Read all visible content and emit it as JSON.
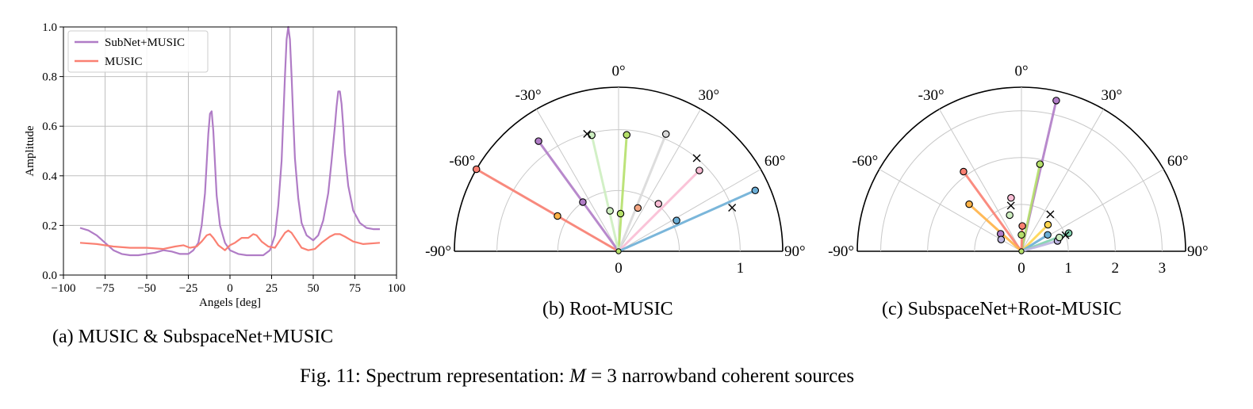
{
  "figure_caption": {
    "prefix": "Fig. 11: Spectrum representation: ",
    "var": "M",
    "suffix": " = 3 narrowband coherent sources"
  },
  "captions": {
    "a": "(a) MUSIC & SubspaceNet+MUSIC",
    "b": "(b) Root-MUSIC",
    "c": "(c) SubspaceNet+Root-MUSIC"
  },
  "chart_data": [
    {
      "type": "line",
      "xlabel": "Angels [deg]",
      "ylabel": "Amplitude",
      "xlim": [
        -100,
        100
      ],
      "ylim": [
        0.0,
        1.0
      ],
      "xticks": [
        -100,
        -75,
        -50,
        -25,
        0,
        25,
        50,
        75,
        100
      ],
      "yticks": [
        0.0,
        0.2,
        0.4,
        0.6,
        0.8,
        1.0
      ],
      "xtick_labels": [
        "−100",
        "−75",
        "−50",
        "−25",
        "0",
        "25",
        "50",
        "75",
        "100"
      ],
      "ytick_labels": [
        "0.0",
        "0.2",
        "0.4",
        "0.6",
        "0.8",
        "1.0"
      ],
      "grid": true,
      "legend_position": "top-left",
      "series": [
        {
          "name": "SubNet+MUSIC",
          "color": "#b07cc6",
          "x": [
            -90,
            -85,
            -80,
            -75,
            -70,
            -65,
            -60,
            -55,
            -50,
            -45,
            -40,
            -35,
            -30,
            -25,
            -22,
            -19,
            -17,
            -15,
            -14,
            -13,
            -12,
            -11,
            -10,
            -9,
            -8,
            -6,
            -3,
            0,
            5,
            10,
            15,
            20,
            24,
            27,
            29,
            31,
            32,
            33,
            34,
            35,
            36,
            37,
            38,
            39,
            41,
            43,
            46,
            50,
            53,
            56,
            59,
            61,
            63,
            64,
            65,
            66,
            67,
            68,
            69,
            71,
            74,
            78,
            82,
            86,
            90
          ],
          "y": [
            0.19,
            0.18,
            0.16,
            0.13,
            0.1,
            0.085,
            0.08,
            0.08,
            0.085,
            0.09,
            0.1,
            0.095,
            0.085,
            0.085,
            0.1,
            0.13,
            0.2,
            0.33,
            0.45,
            0.57,
            0.65,
            0.66,
            0.58,
            0.45,
            0.32,
            0.2,
            0.13,
            0.1,
            0.085,
            0.08,
            0.08,
            0.08,
            0.1,
            0.16,
            0.28,
            0.46,
            0.63,
            0.8,
            0.95,
            1.0,
            0.95,
            0.8,
            0.63,
            0.47,
            0.31,
            0.21,
            0.16,
            0.14,
            0.16,
            0.22,
            0.33,
            0.46,
            0.6,
            0.68,
            0.74,
            0.74,
            0.69,
            0.6,
            0.49,
            0.36,
            0.26,
            0.21,
            0.19,
            0.185,
            0.185
          ]
        },
        {
          "name": "MUSIC",
          "color": "#fa8072",
          "x": [
            -90,
            -80,
            -70,
            -60,
            -50,
            -40,
            -33,
            -28,
            -24,
            -20,
            -17,
            -14,
            -12,
            -10,
            -7,
            -3,
            0,
            3,
            7,
            11,
            14,
            16,
            19,
            23,
            27,
            30,
            33,
            35,
            37,
            40,
            43,
            47,
            51,
            55,
            60,
            63,
            66,
            69,
            74,
            80,
            90
          ],
          "y": [
            0.13,
            0.125,
            0.115,
            0.11,
            0.11,
            0.105,
            0.115,
            0.12,
            0.11,
            0.115,
            0.135,
            0.16,
            0.165,
            0.15,
            0.12,
            0.1,
            0.12,
            0.13,
            0.15,
            0.15,
            0.165,
            0.16,
            0.135,
            0.115,
            0.11,
            0.14,
            0.17,
            0.18,
            0.17,
            0.14,
            0.11,
            0.1,
            0.105,
            0.13,
            0.155,
            0.165,
            0.165,
            0.155,
            0.135,
            0.125,
            0.13
          ]
        }
      ]
    },
    {
      "type": "scatter",
      "subtype": "polar-half",
      "theta_range_deg": [
        -90,
        90
      ],
      "r_max": 1.35,
      "r_ticks": [
        0,
        1
      ],
      "r_tick_labels": [
        "0",
        "1"
      ],
      "r_circles": [
        0.5,
        1.0
      ],
      "theta_ticks": [
        -90,
        -60,
        -30,
        0,
        30,
        60,
        90
      ],
      "theta_tick_labels": [
        "-90°",
        "-60°",
        "-30°",
        "0°",
        "30°",
        "60°",
        "90°"
      ],
      "roots": [
        {
          "theta": -60,
          "r": 1.35,
          "color": "#fa8072",
          "line": true
        },
        {
          "theta": -60,
          "r": 0.58,
          "color": "#ffb347",
          "line": false
        },
        {
          "theta": -36,
          "r": 1.12,
          "color": "#b07cc6",
          "line": true
        },
        {
          "theta": -36,
          "r": 0.5,
          "color": "#b07cc6",
          "line": false
        },
        {
          "theta": 4,
          "r": 0.96,
          "color": "#b5e06a",
          "line": true
        },
        {
          "theta": -13,
          "r": 0.98,
          "color": "#cdeec0",
          "line": true
        },
        {
          "theta": -12,
          "r": 0.34,
          "color": "#cdeec0",
          "line": false
        },
        {
          "theta": 3,
          "r": 0.31,
          "color": "#b5e06a",
          "line": false
        },
        {
          "theta": 22,
          "r": 1.04,
          "color": "#d9d9d9",
          "line": true
        },
        {
          "theta": 24,
          "r": 0.39,
          "color": "#f4a582",
          "line": false
        },
        {
          "theta": 45,
          "r": 0.94,
          "color": "#f9bcd4",
          "line": true
        },
        {
          "theta": 40,
          "r": 0.51,
          "color": "#f9bcd4",
          "line": false
        },
        {
          "theta": 66,
          "r": 1.23,
          "color": "#6baed6",
          "line": true
        },
        {
          "theta": 62,
          "r": 0.54,
          "color": "#6baed6",
          "line": false
        }
      ],
      "unit_circle_markers": [
        {
          "theta": -15,
          "r": 1.0
        },
        {
          "theta": 40,
          "r": 1.0
        },
        {
          "theta": 69,
          "r": 1.0
        }
      ]
    },
    {
      "type": "scatter",
      "subtype": "polar-half",
      "theta_range_deg": [
        -90,
        90
      ],
      "r_max": 3.5,
      "r_ticks": [
        0,
        1,
        2,
        3
      ],
      "r_tick_labels": [
        "0",
        "1",
        "2",
        "3"
      ],
      "r_circles": [
        1,
        2,
        3
      ],
      "theta_ticks": [
        -90,
        -60,
        -30,
        0,
        30,
        60,
        90
      ],
      "theta_tick_labels": [
        "-90°",
        "-60°",
        "-30°",
        "0°",
        "30°",
        "60°",
        "90°"
      ],
      "roots": [
        {
          "theta": 13,
          "r": 3.3,
          "color": "#b07cc6",
          "line": true
        },
        {
          "theta": -36,
          "r": 2.1,
          "color": "#fa8072",
          "line": true
        },
        {
          "theta": -48,
          "r": 1.5,
          "color": "#ffb347",
          "line": true
        },
        {
          "theta": 12,
          "r": 1.9,
          "color": "#b5e06a",
          "line": true
        },
        {
          "theta": 2,
          "r": 0.54,
          "color": "#fa8072",
          "line": true
        },
        {
          "theta": 45,
          "r": 0.8,
          "color": "#ffd54f",
          "line": true
        },
        {
          "theta": 58,
          "r": 0.66,
          "color": "#6baed6",
          "line": true
        },
        {
          "theta": 69,
          "r": 1.08,
          "color": "#7fd1ae",
          "line": true
        },
        {
          "theta": 74,
          "r": 0.8,
          "color": "#bdb5e0",
          "line": true
        },
        {
          "theta": -11,
          "r": 1.16,
          "color": "#f9bcd4",
          "line": false
        },
        {
          "theta": -18,
          "r": 0.81,
          "color": "#cdeec0",
          "line": false
        },
        {
          "theta": -50,
          "r": 0.58,
          "color": "#b07cc6",
          "line": false
        },
        {
          "theta": -60,
          "r": 0.5,
          "color": "#bdb5e0",
          "line": false
        },
        {
          "theta": 0,
          "r": 0.35,
          "color": "#b5e06a",
          "line": false
        },
        {
          "theta": 70,
          "r": 0.86,
          "color": "#cdeec0",
          "line": false
        }
      ],
      "unit_circle_markers": [
        {
          "theta": -13,
          "r": 1.0
        },
        {
          "theta": 38,
          "r": 1.0
        },
        {
          "theta": 70,
          "r": 1.0
        }
      ]
    }
  ]
}
